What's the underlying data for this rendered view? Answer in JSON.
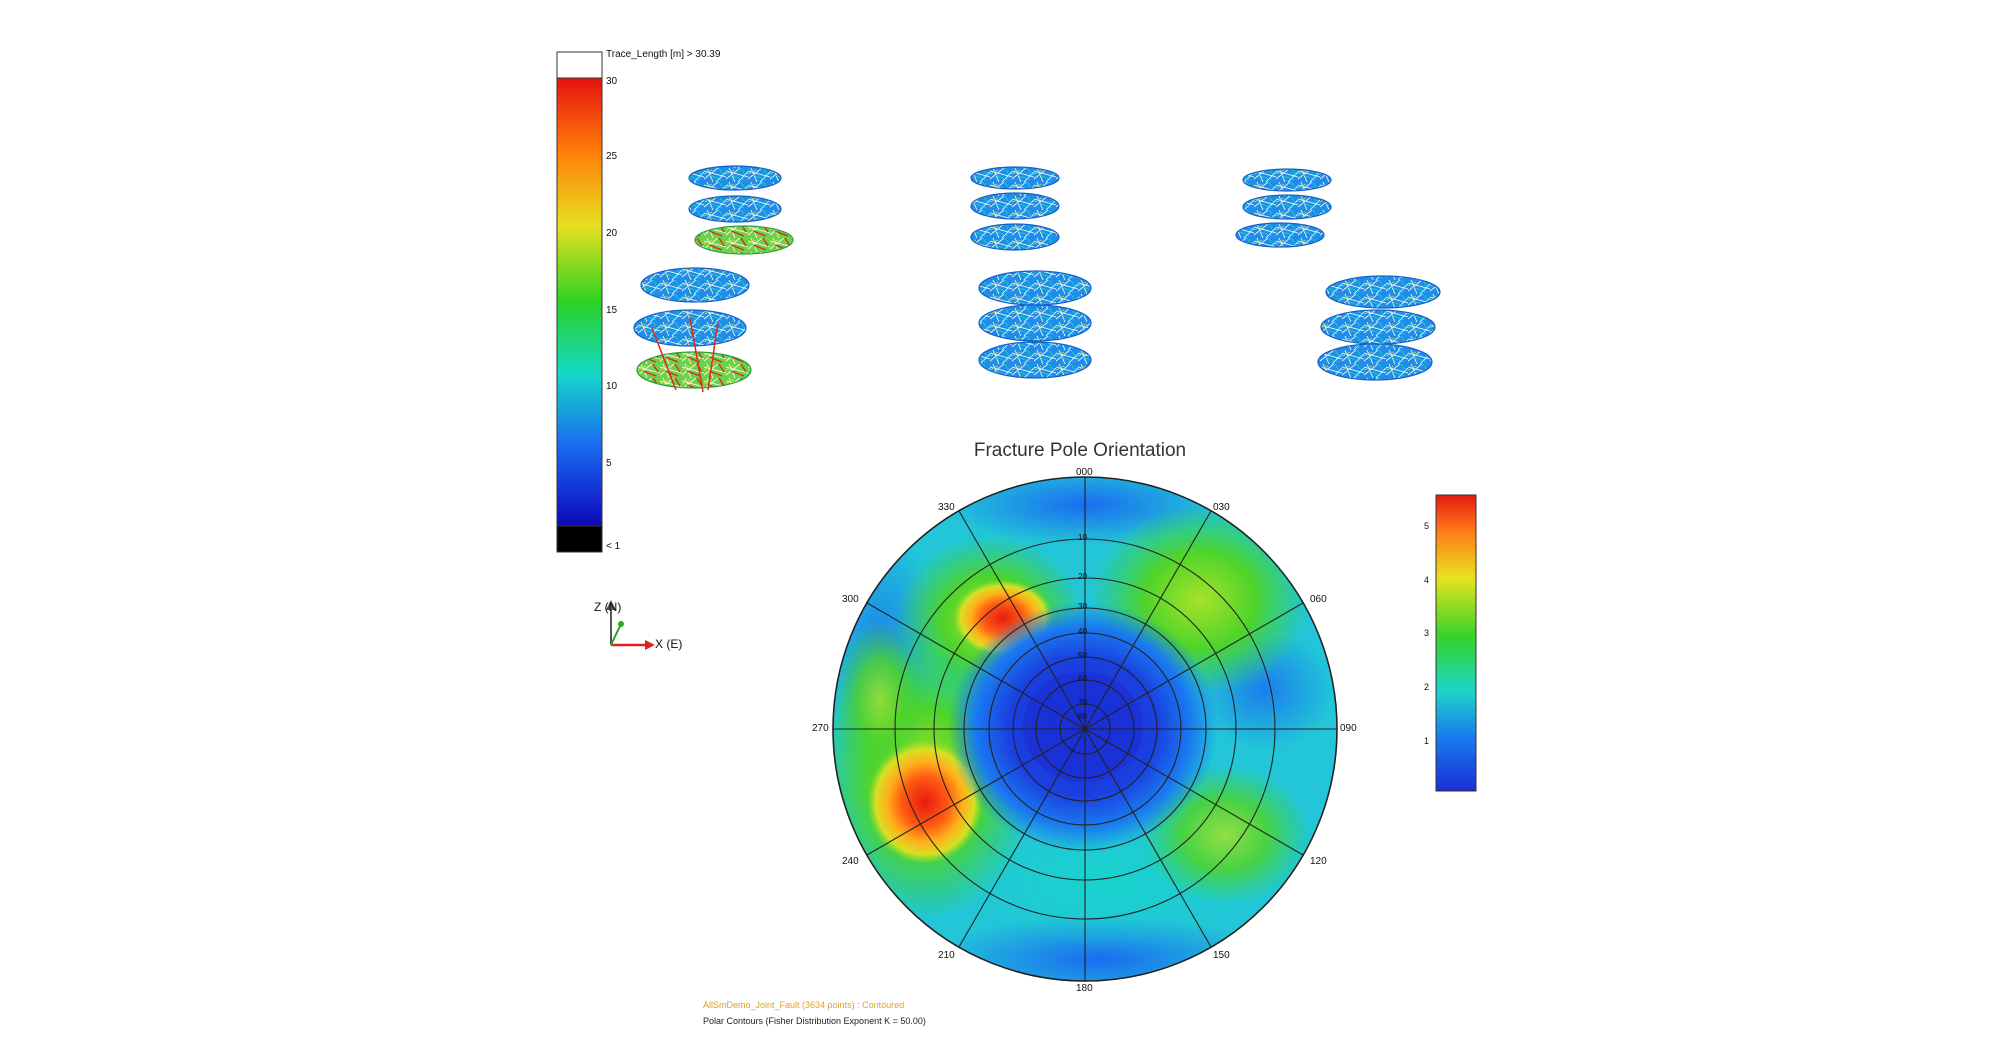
{
  "trace_legend": {
    "header": "Trace_Length [m] > 30.39",
    "ticks": [
      "30",
      "25",
      "20",
      "15",
      "10",
      "5",
      "< 1"
    ],
    "max": 30.39
  },
  "axes_indicator": {
    "z_label": "Z (N)",
    "x_label": "X (E)"
  },
  "stereonet": {
    "title": "Fracture Pole Orientation",
    "azimuth_labels": [
      "000",
      "030",
      "060",
      "090",
      "120",
      "150",
      "180",
      "210",
      "240",
      "270",
      "300",
      "330"
    ],
    "dip_ring_labels": [
      "10",
      "20",
      "30",
      "40",
      "50",
      "60",
      "70",
      "80"
    ],
    "footer_data": "AllSmDemo_Joint_Fault (3634 points) : Contoured",
    "footer_method": "Polar Contours (Fisher Distribution Exponent K = 50.00)"
  },
  "density_legend": {
    "ticks": [
      "5",
      "4",
      "3",
      "2",
      "1"
    ],
    "min": 0,
    "max": 5.6
  },
  "colors": {
    "accent_high": "#e81a10",
    "accent_low": "#1a2fd6",
    "footer_dataset": "#e0a020"
  }
}
